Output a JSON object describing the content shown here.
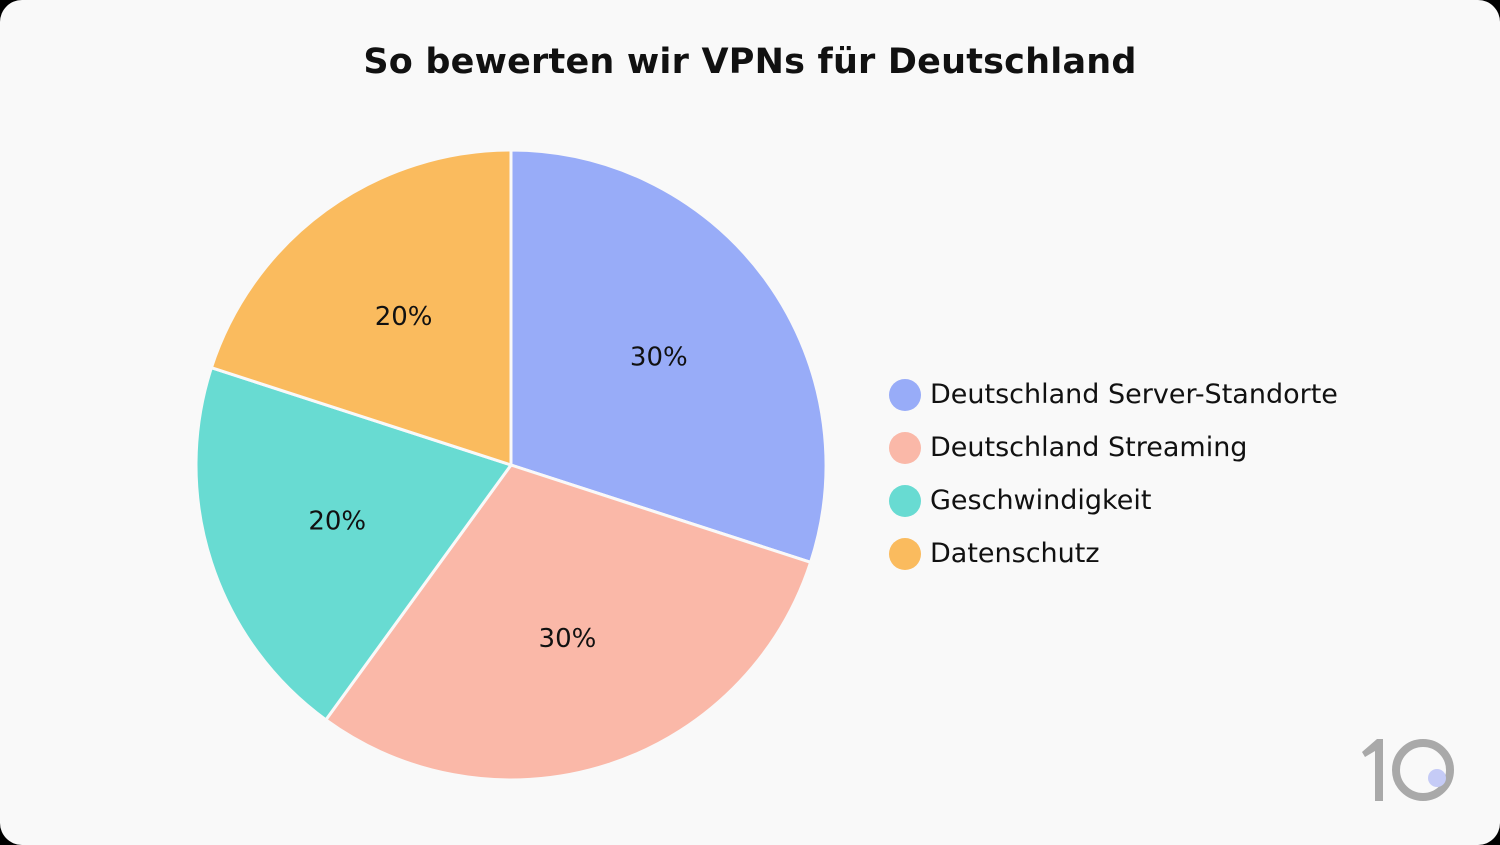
{
  "chart_data": {
    "type": "pie",
    "title": "So bewerten wir VPNs für Deutschland",
    "start_angle": "top",
    "direction": "clockwise",
    "legend_position": "right",
    "slices": [
      {
        "label": "Deutschland Server-Standorte",
        "value": 30,
        "display": "30%",
        "color": "#98acf8"
      },
      {
        "label": "Deutschland Streaming",
        "value": 30,
        "display": "30%",
        "color": "#fab8a8"
      },
      {
        "label": "Geschwindigkeit",
        "value": 20,
        "display": "20%",
        "color": "#68dbd2"
      },
      {
        "label": "Datenschutz",
        "value": 20,
        "display": "20%",
        "color": "#fabb5e"
      }
    ]
  },
  "logo": {
    "text": "10",
    "icon": "top10vpn-logo",
    "dot_color": "#c5cbf6"
  }
}
